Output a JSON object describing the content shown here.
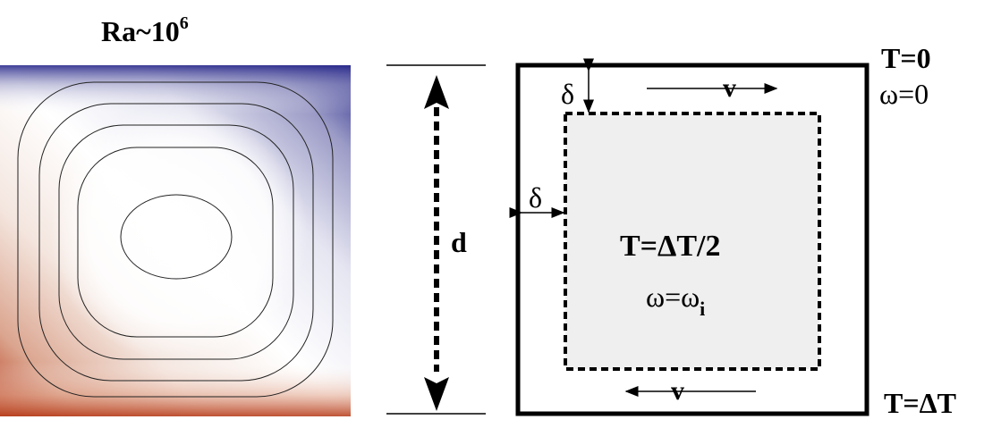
{
  "left_panel": {
    "title_base": "Ra~10",
    "title_exponent": "6",
    "colors": {
      "hot": "#b8401f",
      "cold": "#2a2a8c",
      "mid": "#ffffff"
    }
  },
  "dimension": {
    "label": "d"
  },
  "schematic": {
    "top_right": {
      "temperature": "T=0",
      "vorticity": "ω=0"
    },
    "bottom_right": {
      "temperature": "T=ΔT"
    },
    "top_boundary": {
      "delta": "δ",
      "velocity": "v"
    },
    "left_boundary": {
      "delta": "δ"
    },
    "bottom_boundary": {
      "velocity": "v"
    },
    "core": {
      "temperature": "T=ΔT/2",
      "vorticity_base": "ω=ω",
      "vorticity_subscript": "i",
      "fill_color": "#efefef"
    }
  }
}
